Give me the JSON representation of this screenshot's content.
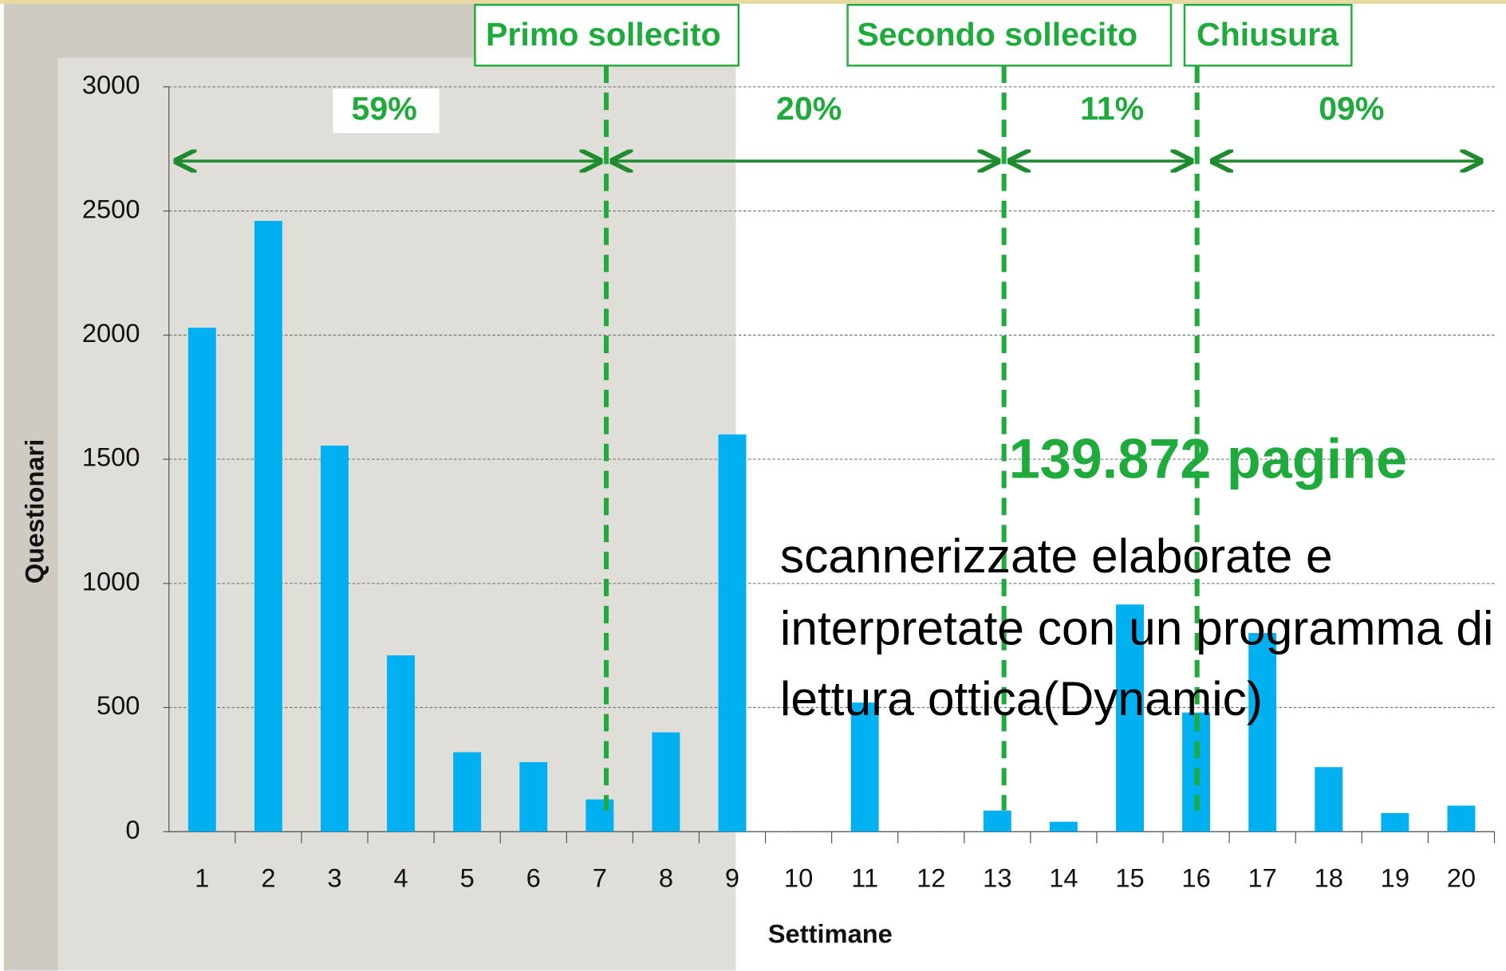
{
  "chart_data": {
    "type": "bar",
    "x_label": "Settimane",
    "y_label": "Questionari",
    "categories": [
      "1",
      "2",
      "3",
      "4",
      "5",
      "6",
      "7",
      "8",
      "9",
      "10",
      "11",
      "12",
      "13",
      "14",
      "15",
      "16",
      "17",
      "18",
      "19",
      "20"
    ],
    "values": [
      2030,
      2460,
      1555,
      710,
      320,
      280,
      130,
      400,
      1600,
      0,
      520,
      0,
      85,
      40,
      915,
      480,
      800,
      260,
      75,
      105
    ],
    "color": "#00b0f0",
    "ylim": [
      0,
      3000
    ],
    "yticks": [
      0,
      500,
      1000,
      1500,
      2000,
      2500,
      3000
    ],
    "grid": true,
    "annotations": {
      "phases": [
        "Primo sollecito",
        "Secondo sollecito",
        "Chiusura"
      ],
      "shares": [
        "59%",
        "20%",
        "11%",
        "09%"
      ],
      "highlight": "139.872  pagine",
      "description": [
        "scannerizzate  elaborate e",
        "interpretate con un programma di",
        "lettura ottica(Dynamic)"
      ]
    }
  }
}
